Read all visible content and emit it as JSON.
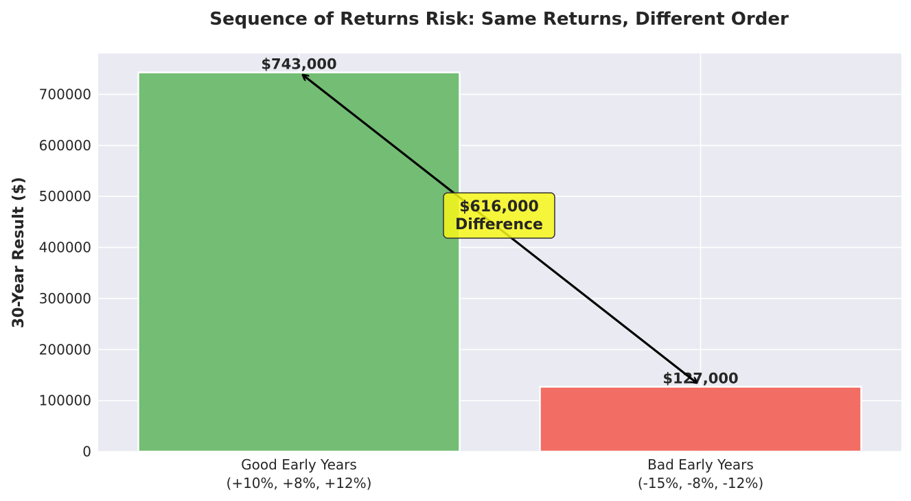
{
  "chart_data": {
    "type": "bar",
    "title": "Sequence of Returns Risk: Same Returns, Different Order",
    "xlabel": "",
    "ylabel": "30-Year Result ($)",
    "categories": [
      [
        "Good Early Years",
        "(+10%, +8%, +12%)"
      ],
      [
        "Bad Early Years",
        "(-15%, -8%, -12%)"
      ]
    ],
    "values": [
      743000,
      127000
    ],
    "value_labels": [
      "$743,000",
      "$127,000"
    ],
    "colors": [
      "#6dba6d",
      "#f2665c"
    ],
    "ylim": [
      0,
      780000
    ],
    "yticks": [
      0,
      100000,
      200000,
      300000,
      400000,
      500000,
      600000,
      700000
    ],
    "ytick_labels": [
      "0",
      "100000",
      "200000",
      "300000",
      "400000",
      "500000",
      "600000",
      "700000"
    ],
    "grid": true,
    "background": "#eaeaf2",
    "annotation": {
      "lines": [
        "$616,000",
        "Difference"
      ],
      "box_color": "#f7f71a",
      "arrow": "double-headed, between bar tops"
    }
  }
}
